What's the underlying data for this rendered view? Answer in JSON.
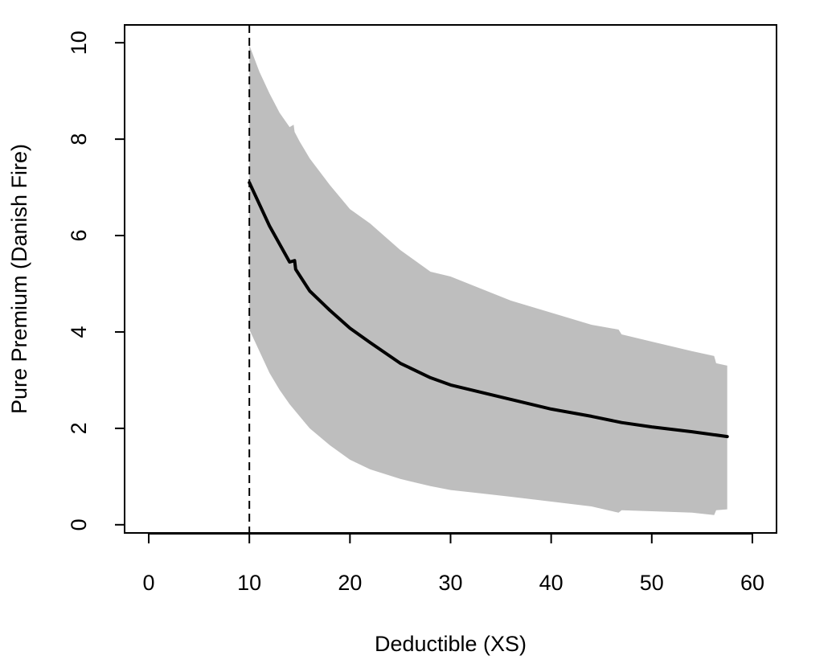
{
  "chart_data": {
    "type": "area",
    "xlabel": "Deductible (XS)",
    "ylabel": "Pure Premium (Danish Fire)",
    "xlim": [
      -2.4,
      62.4
    ],
    "ylim": [
      -0.17,
      10.37
    ],
    "xticks": [
      0,
      10,
      20,
      30,
      40,
      50,
      60
    ],
    "yticks": [
      0,
      2,
      4,
      6,
      8,
      10
    ],
    "grid": false,
    "vline": {
      "x": 10,
      "style": "dashed"
    },
    "series": [
      {
        "role": "estimate",
        "color": "#000000",
        "x": [
          10,
          12,
          14,
          14.5,
          14.6,
          16,
          18,
          20,
          22,
          25,
          28,
          30,
          33,
          36,
          40,
          44,
          47,
          50,
          54,
          57.5
        ],
        "y": [
          7.1,
          6.2,
          5.45,
          5.48,
          5.3,
          4.85,
          4.45,
          4.08,
          3.78,
          3.35,
          3.05,
          2.9,
          2.75,
          2.6,
          2.4,
          2.25,
          2.12,
          2.03,
          1.93,
          1.83
        ]
      },
      {
        "role": "band-upper",
        "color": "#bebebe",
        "x": [
          10,
          11,
          12,
          13,
          14,
          14.4,
          14.5,
          15,
          16,
          18,
          20,
          22,
          25,
          28,
          30,
          33,
          36,
          40,
          44,
          46.7,
          47,
          50,
          54,
          56.2,
          56.4,
          57.5
        ],
        "y": [
          9.95,
          9.4,
          8.95,
          8.55,
          8.25,
          8.3,
          8.15,
          7.95,
          7.6,
          7.05,
          6.55,
          6.25,
          5.7,
          5.25,
          5.15,
          4.9,
          4.65,
          4.4,
          4.15,
          4.05,
          3.95,
          3.8,
          3.6,
          3.5,
          3.35,
          3.3
        ]
      },
      {
        "role": "band-lower",
        "color": "#bebebe",
        "x": [
          10,
          11,
          12,
          13,
          14,
          16,
          18,
          20,
          22,
          25,
          28,
          30,
          33,
          36,
          40,
          44,
          46.7,
          47,
          50,
          54,
          56.2,
          56.4,
          57.5
        ],
        "y": [
          4.05,
          3.6,
          3.15,
          2.8,
          2.5,
          2.0,
          1.65,
          1.35,
          1.15,
          0.95,
          0.8,
          0.72,
          0.65,
          0.58,
          0.48,
          0.38,
          0.25,
          0.3,
          0.28,
          0.25,
          0.2,
          0.3,
          0.32
        ]
      }
    ]
  }
}
